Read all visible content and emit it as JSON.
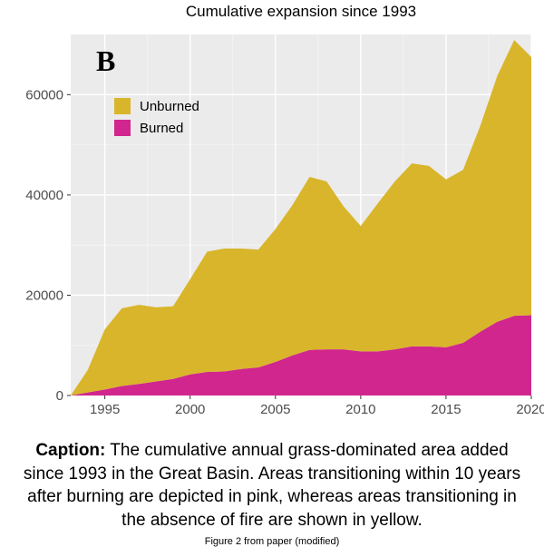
{
  "chart": {
    "type": "area-stacked",
    "title": "Cumulative expansion since 1993",
    "panel_label": "B",
    "panel_label_fontsize": 32,
    "title_fontsize": 17,
    "background_color": "#ffffff",
    "plot_background_color": "#ebebeb",
    "grid_major_color": "#ffffff",
    "grid_minor_color": "#f5f5f5",
    "axis_text_color": "#4d4d4d",
    "axis_fontsize": 15,
    "xlim": [
      1993,
      2020
    ],
    "ylim": [
      0,
      72000
    ],
    "x_ticks": [
      1995,
      2000,
      2005,
      2010,
      2015,
      2020
    ],
    "y_ticks": [
      0,
      20000,
      40000,
      60000
    ],
    "years": [
      1993,
      1994,
      1995,
      1996,
      1997,
      1998,
      1999,
      2000,
      2001,
      2002,
      2003,
      2004,
      2005,
      2006,
      2007,
      2008,
      2009,
      2010,
      2011,
      2012,
      2013,
      2014,
      2015,
      2016,
      2017,
      2018,
      2019,
      2020
    ],
    "series": [
      {
        "name": "Unburned",
        "color": "#d9b52b",
        "values": [
          0,
          4500,
          12000,
          15500,
          15800,
          14800,
          14500,
          19000,
          24000,
          24500,
          24000,
          23500,
          26500,
          30000,
          34500,
          33500,
          28500,
          25000,
          29500,
          33500,
          36500,
          36000,
          33500,
          34500,
          41000,
          49000,
          55000,
          51500
        ]
      },
      {
        "name": "Burned",
        "color": "#d0268e",
        "values": [
          0,
          600,
          1200,
          1900,
          2300,
          2800,
          3300,
          4200,
          4700,
          4800,
          5300,
          5600,
          6700,
          8000,
          9100,
          9200,
          9200,
          8800,
          8800,
          9200,
          9800,
          9800,
          9600,
          10500,
          12700,
          14700,
          15900,
          16000
        ]
      }
    ],
    "legend": {
      "items": [
        "Unburned",
        "Burned"
      ],
      "swatch_colors": [
        "#d9b52b",
        "#d0268e"
      ],
      "fontsize": 15
    }
  },
  "caption": {
    "lead": "Caption:",
    "text": " The cumulative annual grass-dominated area added since 1993 in the Great Basin. Areas transitioning within 10 years after burning are depicted in pink, whereas areas transitioning in the absence of fire are shown in yellow.",
    "sub": "Figure 2 from paper (modified)",
    "fontsize": 19,
    "sub_fontsize": 11
  }
}
